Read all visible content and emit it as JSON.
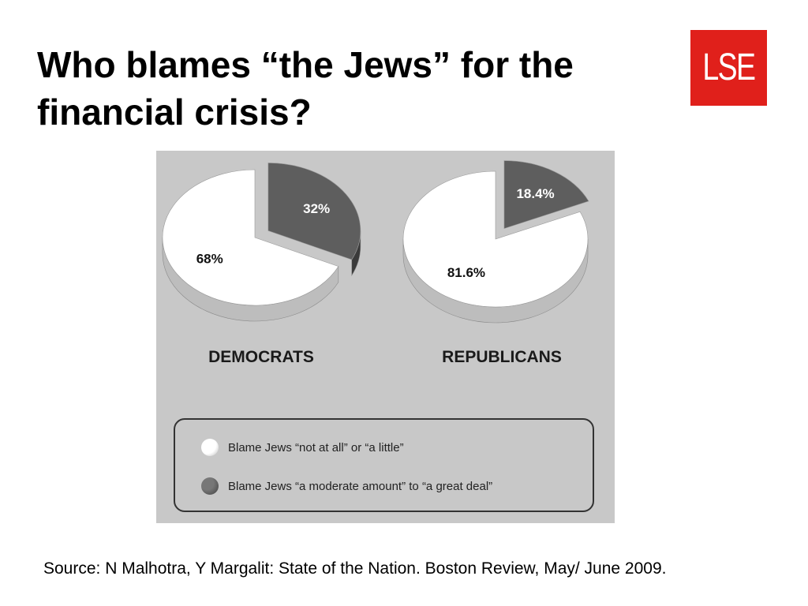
{
  "slide": {
    "title_line1": "Who blames “the Jews” for the",
    "title_line2": "financial crisis?",
    "logo_text": "LSE",
    "source": "Source: N Malhotra, Y Margalit: State of the Nation. Boston Review, May/ June 2009."
  },
  "colors": {
    "logo_red": "#e0201b",
    "figure_background": "#c8c8c8",
    "slice_white": "#ffffff",
    "slice_dark": "#5e5e5e"
  },
  "chart_data": [
    {
      "type": "pie",
      "name": "DEMOCRATS",
      "slices": [
        {
          "label": "68%",
          "value": 68,
          "legend": 0
        },
        {
          "label": "32%",
          "value": 32,
          "legend": 1
        }
      ]
    },
    {
      "type": "pie",
      "name": "REPUBLICANS",
      "slices": [
        {
          "label": "81.6%",
          "value": 81.6,
          "legend": 0
        },
        {
          "label": "18.4%",
          "value": 18.4,
          "legend": 1
        }
      ]
    }
  ],
  "legend": {
    "placement": "bottom",
    "items": [
      {
        "label": "Blame Jews “not at all” or “a little”",
        "color": "#ffffff"
      },
      {
        "label": "Blame Jews “a moderate amount” to “a great deal”",
        "color": "#5e5e5e"
      }
    ]
  }
}
